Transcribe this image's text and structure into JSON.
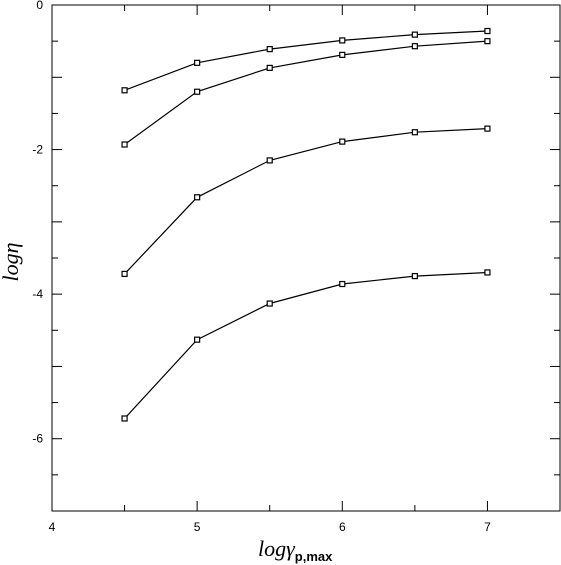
{
  "chart_data": {
    "type": "line",
    "title": "",
    "xlabel": {
      "main": "logγ",
      "sub": "p,max"
    },
    "ylabel": "logη",
    "xlim": [
      4,
      7.5
    ],
    "ylim": [
      -7,
      0
    ],
    "x_ticks": [
      "4",
      "5",
      "6",
      "7"
    ],
    "y_ticks": [
      "0",
      "-2",
      "-4",
      "-6"
    ],
    "x": [
      4.5,
      5.0,
      5.5,
      6.0,
      6.5,
      7.0
    ],
    "series": [
      {
        "values": [
          -1.18,
          -0.8,
          -0.61,
          -0.49,
          -0.41,
          -0.36
        ]
      },
      {
        "values": [
          -1.93,
          -1.2,
          -0.87,
          -0.69,
          -0.57,
          -0.5
        ]
      },
      {
        "values": [
          -3.72,
          -2.66,
          -2.15,
          -1.89,
          -1.76,
          -1.71
        ]
      },
      {
        "values": [
          -5.72,
          -4.63,
          -4.13,
          -3.86,
          -3.75,
          -3.7
        ]
      }
    ],
    "grid": false,
    "colors": {
      "line": "#000000",
      "marker": "#000000"
    }
  }
}
